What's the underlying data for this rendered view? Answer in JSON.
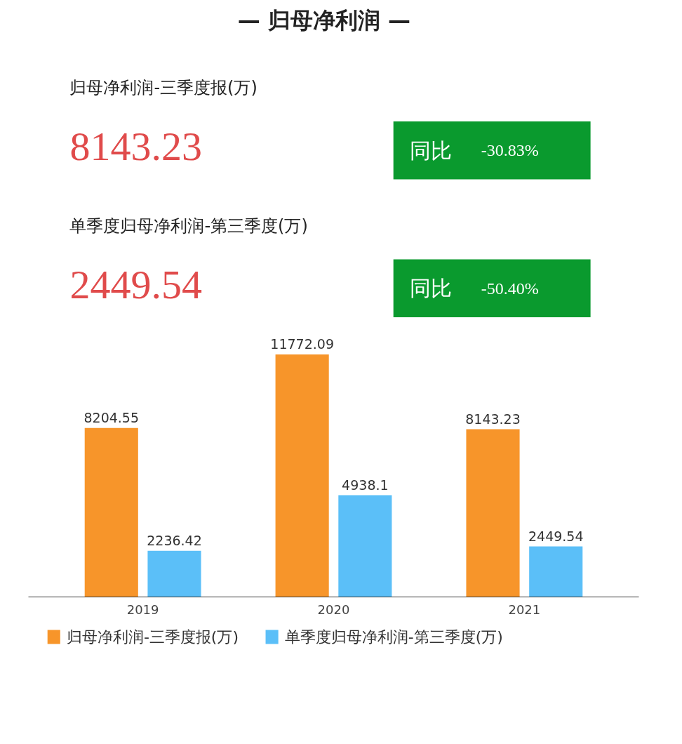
{
  "chart_data": {
    "type": "bar",
    "title": "— 归母净利润 —",
    "annotations": [
      "归母净利润-三季度报(万)",
      "8143.23",
      "同比",
      "-30.83%",
      "单季度归母净利润-第三季度(万)",
      "2449.54",
      "同比",
      "-50.40%"
    ],
    "categories": [
      "2019",
      "2020",
      "2021"
    ],
    "series": [
      {
        "name": "归母净利润-三季度报(万)",
        "color": "#f7952a",
        "values": [
          8204.55,
          11772.09,
          8143.23
        ]
      },
      {
        "name": "单季度归母净利润-第三季度(万)",
        "color": "#5bbff8",
        "values": [
          2236.42,
          4938.1,
          2449.54
        ]
      }
    ],
    "tick_labels": "x",
    "data_labels": true,
    "legend": "bottom",
    "grid": false
  }
}
